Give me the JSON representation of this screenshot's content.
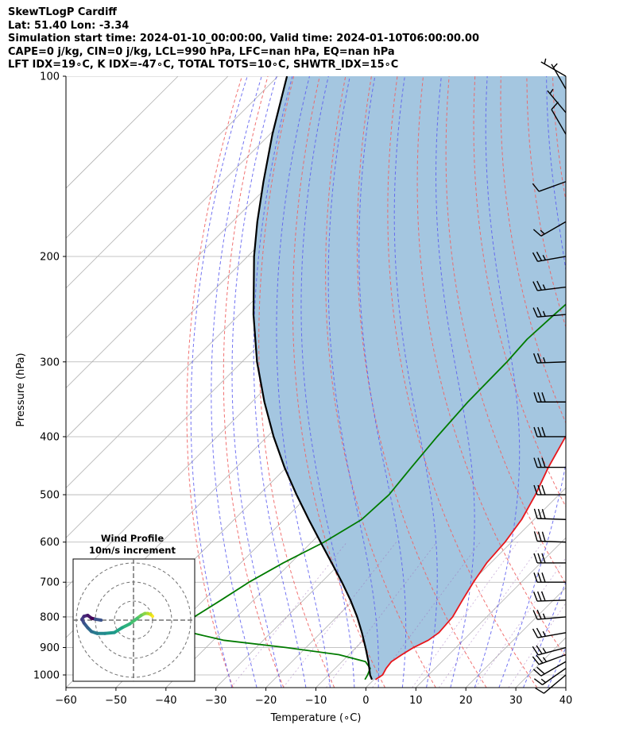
{
  "header": {
    "lines": [
      "SkewTLogP Cardiff",
      "Lat: 51.40   Lon: -3.34",
      "Simulation start time: 2024-01-10_00:00:00, Valid time: 2024-01-10T06:00:00.00",
      "CAPE=0 j/kg, CIN=0 j/kg, LCL=990 hPa, LFC=nan hPa, EQ=nan hPa",
      "LFT IDX=19∘C, K IDX=-47∘C, TOTAL TOTS=10∘C, SHWTR_IDX=15∘C"
    ]
  },
  "chart_data": {
    "type": "line",
    "title": "SkewTLogP Cardiff",
    "xlabel": "Temperature (∘C)",
    "ylabel": "Pressure (hPa)",
    "xlim": [
      -60,
      40
    ],
    "ylim": [
      1050,
      100
    ],
    "y_scale": "log",
    "skew": true,
    "grid": true,
    "x_ticks": [
      -60,
      -50,
      -40,
      -30,
      -20,
      -10,
      0,
      10,
      20,
      30,
      40
    ],
    "x_tick_labels": [
      "−60",
      "−50",
      "−40",
      "−30",
      "−20",
      "−10",
      "0",
      "10",
      "20",
      "30",
      "40"
    ],
    "y_ticks": [
      100,
      200,
      300,
      400,
      500,
      600,
      700,
      800,
      900,
      1000
    ],
    "y_tick_labels": [
      "100",
      "200",
      "300",
      "400",
      "500",
      "600",
      "700",
      "800",
      "900",
      "1000"
    ],
    "series": [
      {
        "color": "#e8161b",
        "pressure": [
          1018,
          1000,
          975,
          950,
          925,
          900,
          875,
          850,
          800,
          750,
          700,
          650,
          600,
          550,
          500,
          450,
          400,
          350,
          300,
          275,
          250,
          225,
          200,
          185,
          175,
          165,
          155,
          145,
          135,
          125,
          115,
          105,
          100
        ],
        "temperature": [
          0.3,
          0.8,
          0.2,
          -0.1,
          0.6,
          1.5,
          3.0,
          3.6,
          3.2,
          1.8,
          0.4,
          -0.8,
          -1.3,
          -2.5,
          -4.7,
          -7.6,
          -10.3,
          -12.5,
          -13.3,
          -12.5,
          -10.7,
          -7.8,
          -5.0,
          -3.4,
          -2.4,
          -1.7,
          -1.1,
          -0.9,
          -1.2,
          -0.8,
          0.4,
          1.1,
          1.6
        ]
      },
      {
        "color": "#007b00",
        "pressure": [
          1018,
          1000,
          975,
          950,
          925,
          900,
          875,
          850,
          825,
          800,
          750,
          700,
          650,
          600,
          550,
          500,
          450,
          400,
          350,
          300,
          275,
          250,
          225,
          200,
          185,
          175,
          165,
          155,
          145,
          135,
          125,
          115,
          105,
          100
        ],
        "temperature": [
          -1.8,
          -2.2,
          -3.0,
          -5.3,
          -12.0,
          -24.0,
          -38.0,
          -46.0,
          -49.0,
          -48.5,
          -46.5,
          -44.5,
          -41.5,
          -37.5,
          -34.5,
          -34.0,
          -35.0,
          -36.0,
          -36.8,
          -37.0,
          -37.5,
          -37.0,
          -36.3,
          -35.2,
          -34.8,
          -34.0,
          -32.0,
          -28.5,
          -23.0,
          -19.0,
          -15.5,
          -12.0,
          -8.8,
          -6.8
        ]
      },
      {
        "color": "#000000",
        "pressure": [
          1018,
          1000,
          950,
          900,
          850,
          800,
          750,
          700,
          650,
          600,
          550,
          500,
          450,
          400,
          350,
          300,
          250,
          200,
          175,
          150,
          125,
          100
        ],
        "temperature": [
          -0.4,
          -1.7,
          -4.7,
          -8.1,
          -11.8,
          -15.9,
          -20.6,
          -25.9,
          -31.8,
          -38.2,
          -45.1,
          -52.5,
          -60.4,
          -68.7,
          -77.5,
          -87.0,
          -97.2,
          -108.7,
          -115.0,
          -121.8,
          -129.5,
          -138.2
        ]
      }
    ],
    "wind_barbs": {
      "pressure": [
        1000,
        975,
        950,
        925,
        900,
        850,
        800,
        750,
        700,
        650,
        600,
        550,
        500,
        450,
        400,
        350,
        300,
        250,
        225,
        200,
        175,
        150,
        125,
        115,
        105,
        100
      ],
      "speed_kt": [
        10,
        15,
        20,
        25,
        25,
        25,
        25,
        30,
        30,
        30,
        30,
        30,
        30,
        30,
        30,
        30,
        25,
        25,
        25,
        25,
        15,
        10,
        10,
        5,
        5,
        5
      ],
      "direction_deg": [
        230,
        235,
        240,
        250,
        255,
        260,
        265,
        268,
        270,
        270,
        272,
        272,
        270,
        270,
        270,
        270,
        268,
        265,
        263,
        260,
        240,
        250,
        330,
        320,
        330,
        300
      ]
    },
    "hodograph": {
      "title": "Wind Profile",
      "subtitle": "10m/s increment",
      "u": [
        10,
        9,
        7.5,
        6,
        4,
        2,
        -2,
        -6,
        -10,
        -15,
        -19,
        -22,
        -24,
        -26,
        -27,
        -26,
        -24,
        -22,
        -20,
        -17
      ],
      "v": [
        2,
        3,
        3.5,
        3.5,
        2.5,
        1,
        -2,
        -4,
        -6.5,
        -7,
        -7,
        -6,
        -4,
        -1.5,
        0.5,
        2,
        2.5,
        1,
        0.5,
        0
      ]
    }
  }
}
